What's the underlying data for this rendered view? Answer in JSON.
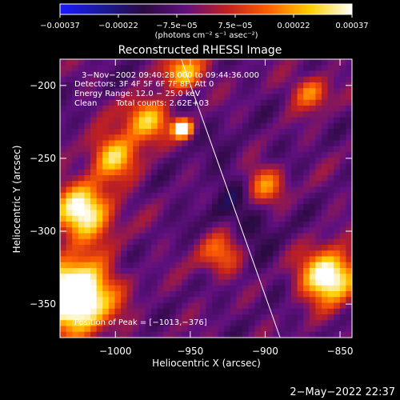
{
  "chart_data": {
    "type": "heatmap",
    "title": "Reconstructed RHESSI Image",
    "xlabel": "Heliocentric X (arcsec)",
    "ylabel": "Heliocentric Y (arcsec)",
    "xlim": [
      -1037,
      -842
    ],
    "ylim": [
      -373,
      -182
    ],
    "x_ticks": [
      {
        "value": -1000,
        "label": "−1000"
      },
      {
        "value": -950,
        "label": "−950"
      },
      {
        "value": -900,
        "label": "−900"
      },
      {
        "value": -850,
        "label": "−850"
      }
    ],
    "y_ticks": [
      {
        "value": -200,
        "label": "−200"
      },
      {
        "value": -250,
        "label": "−250"
      },
      {
        "value": -300,
        "label": "−300"
      },
      {
        "value": -350,
        "label": "−350"
      }
    ],
    "colorbar": {
      "range": [
        -0.00037,
        0.00037
      ],
      "tick_labels": [
        "−0.00037",
        "−0.00022",
        "−7.5e−05",
        "7.5e−05",
        "0.00022",
        "0.00037"
      ],
      "unit_label": "(photons cm⁻² s⁻¹ asec⁻²)",
      "colors": [
        "#1a1aff",
        "#1a1a9a",
        "#2a0a40",
        "#601080",
        "#c02020",
        "#ff6000",
        "#ffd000",
        "#ffffff"
      ]
    },
    "annotations": [
      "3−Nov−2002 09:40:28.000 to 09:44:36.000",
      "Detectors: 3F 4F 5F 6F 7F 8F, Att 0",
      "Energy Range: 12.0 − 25.0 keV",
      "Clean",
      "Total counts: 2.62E+03",
      "Position of Peak = [−1013,−376]"
    ],
    "limb_line": {
      "points": [
        [
          -956,
          -182
        ],
        [
          -890,
          -373
        ]
      ]
    },
    "grid": false,
    "legend": "none"
  },
  "footer": {
    "timestamp": "2−May−2022 22:37"
  }
}
